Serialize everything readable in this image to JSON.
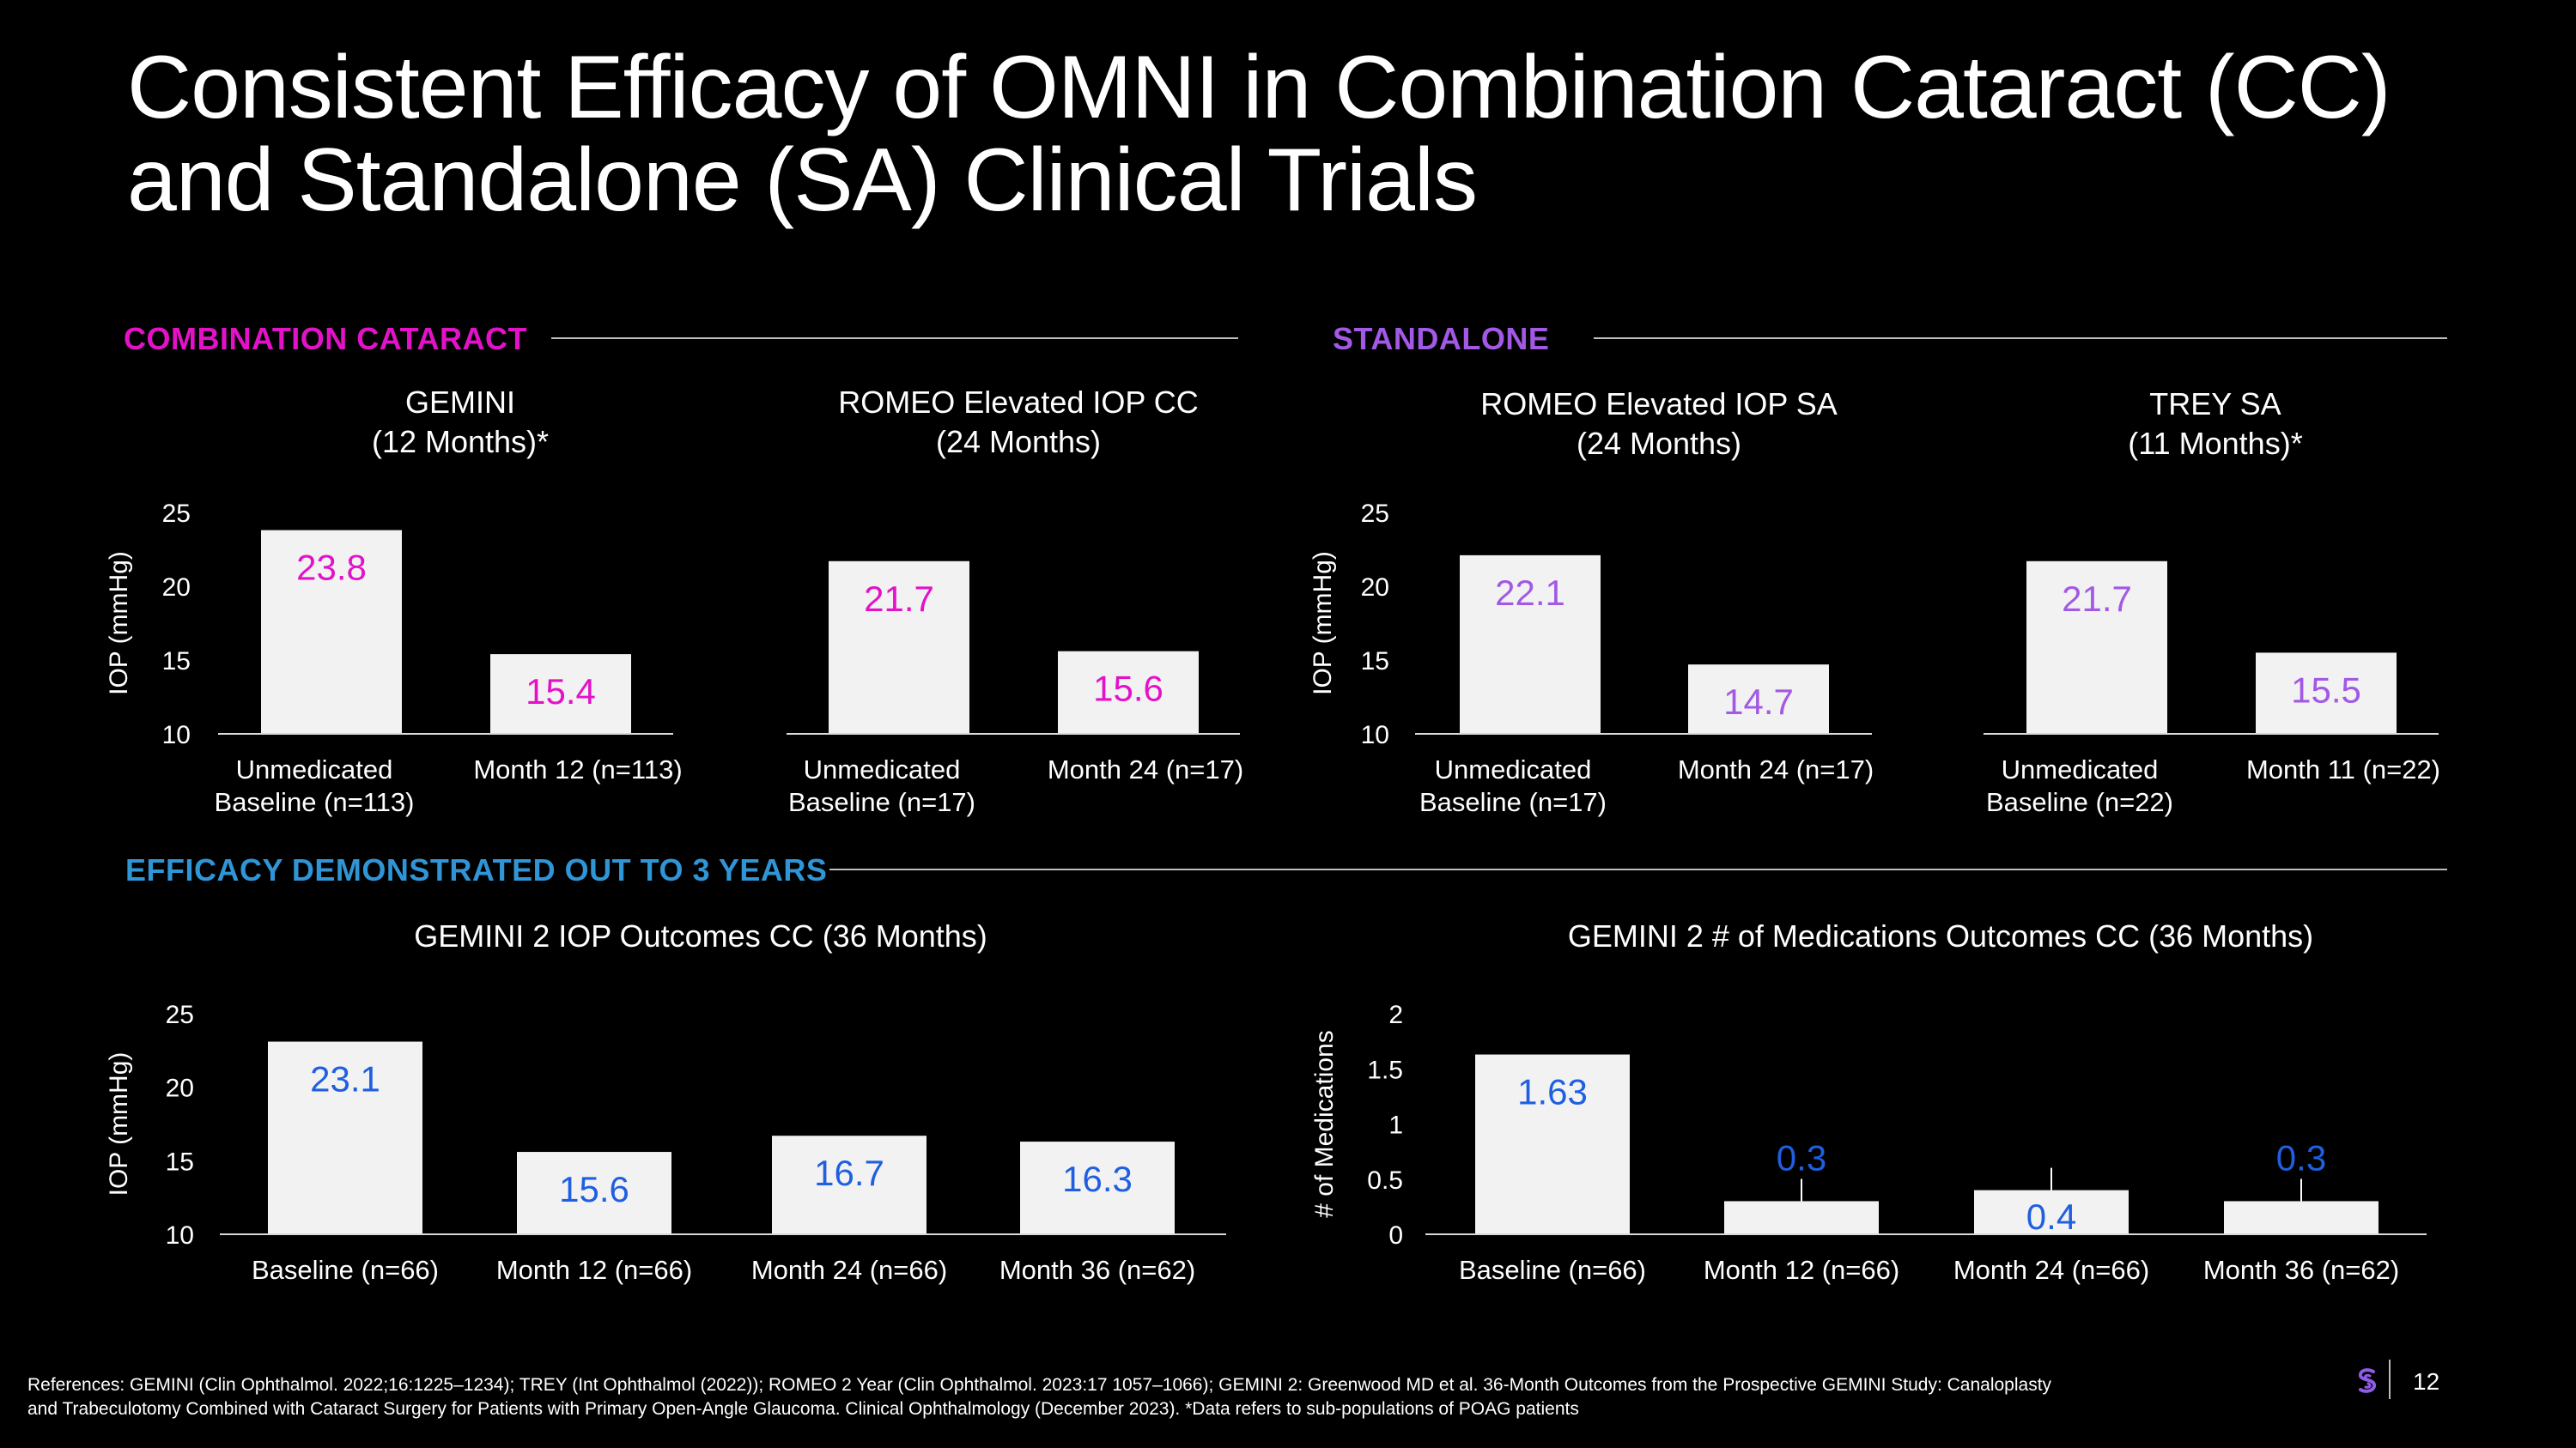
{
  "slide": {
    "title_line1": "Consistent Efficacy of OMNI in Combination Cataract (CC)",
    "title_line2": "and Standalone (SA) Clinical Trials",
    "section_cc": "COMBINATION CATARACT",
    "section_sa": "STANDALONE",
    "section_3y": "EFFICACY DEMONSTRATED OUT TO 3 YEARS",
    "references_line1": "References: GEMINI (Clin Ophthalmol. 2022;16:1225–1234); TREY (Int Ophthalmol (2022)); ROMEO 2 Year (Clin Ophthalmol. 2023:17 1057–1066); GEMINI 2: Greenwood MD et al. 36-Month Outcomes from the Prospective GEMINI Study: Canaloplasty",
    "references_line2": "and Trabeculotomy Combined with Cataract Surgery for Patients with Primary Open-Angle Glaucoma. Clinical Ophthalmology (December 2023). *Data refers to sub-populations of POAG patients",
    "page_number": "12"
  },
  "colors": {
    "magenta": "#e312c8",
    "purple": "#a259e6",
    "blue": "#1f5fe0",
    "section_blue": "#2f95d6",
    "bar": "#f2f2f2"
  },
  "chart_data": [
    {
      "id": "gemini",
      "type": "bar",
      "title_line1": "GEMINI",
      "title_line2": "(12 Months)*",
      "ylabel": "IOP (mmHg)",
      "ylim": [
        10,
        25
      ],
      "yticks": [
        "10",
        "15",
        "20",
        "25"
      ],
      "categories": [
        [
          "Unmedicated",
          "Baseline (n=113)"
        ],
        [
          "Month 12 (n=113)"
        ]
      ],
      "values": [
        23.8,
        15.4
      ],
      "labels": [
        "23.8",
        "15.4"
      ],
      "label_color": "#e312c8"
    },
    {
      "id": "romeo-cc",
      "type": "bar",
      "title_line1": "ROMEO Elevated IOP CC",
      "title_line2": "(24 Months)",
      "ylabel": "",
      "ylim": [
        10,
        25
      ],
      "yticks": [],
      "categories": [
        [
          "Unmedicated",
          "Baseline (n=17)"
        ],
        [
          "Month 24 (n=17)"
        ]
      ],
      "values": [
        21.7,
        15.6
      ],
      "labels": [
        "21.7",
        "15.6"
      ],
      "label_color": "#e312c8"
    },
    {
      "id": "romeo-sa",
      "type": "bar",
      "title_line1": "ROMEO Elevated IOP SA",
      "title_line2": "(24 Months)",
      "ylabel": "IOP (mmHg)",
      "ylim": [
        10,
        25
      ],
      "yticks": [
        "10",
        "15",
        "20",
        "25"
      ],
      "categories": [
        [
          "Unmedicated",
          "Baseline (n=17)"
        ],
        [
          "Month 24 (n=17)"
        ]
      ],
      "values": [
        22.1,
        14.7
      ],
      "labels": [
        "22.1",
        "14.7"
      ],
      "label_color": "#a259e6"
    },
    {
      "id": "trey-sa",
      "type": "bar",
      "title_line1": "TREY SA",
      "title_line2": "(11 Months)*",
      "ylabel": "",
      "ylim": [
        10,
        25
      ],
      "yticks": [],
      "categories": [
        [
          "Unmedicated",
          "Baseline (n=22)"
        ],
        [
          "Month 11 (n=22)"
        ]
      ],
      "values": [
        21.7,
        15.5
      ],
      "labels": [
        "21.7",
        "15.5"
      ],
      "label_color": "#a259e6"
    },
    {
      "id": "gemini2-iop",
      "type": "bar",
      "title_line1": "GEMINI 2 IOP Outcomes CC (36 Months)",
      "title_line2": "",
      "ylabel": "IOP (mmHg)",
      "ylim": [
        10,
        25
      ],
      "yticks": [
        "10",
        "15",
        "20",
        "25"
      ],
      "categories": [
        [
          "Baseline (n=66)"
        ],
        [
          "Month 12 (n=66)"
        ],
        [
          "Month 24 (n=66)"
        ],
        [
          "Month 36 (n=62)"
        ]
      ],
      "values": [
        23.1,
        15.6,
        16.7,
        16.3
      ],
      "labels": [
        "23.1",
        "15.6",
        "16.7",
        "16.3"
      ],
      "label_color": "#1f5fe0"
    },
    {
      "id": "gemini2-meds",
      "type": "bar",
      "title_line1": "GEMINI 2 # of Medications Outcomes CC (36 Months)",
      "title_line2": "",
      "ylabel": "# of Medications",
      "ylim": [
        0,
        2
      ],
      "yticks": [
        "0",
        "0.5",
        "1",
        "1.5",
        "2"
      ],
      "categories": [
        [
          "Baseline (n=66)"
        ],
        [
          "Month 12 (n=66)"
        ],
        [
          "Month 24 (n=66)"
        ],
        [
          "Month 36 (n=62)"
        ]
      ],
      "values": [
        1.63,
        0.3,
        0.4,
        0.3
      ],
      "labels": [
        "1.63",
        "0.3",
        "0.4",
        "0.3"
      ],
      "label_color": "#1f5fe0"
    }
  ]
}
